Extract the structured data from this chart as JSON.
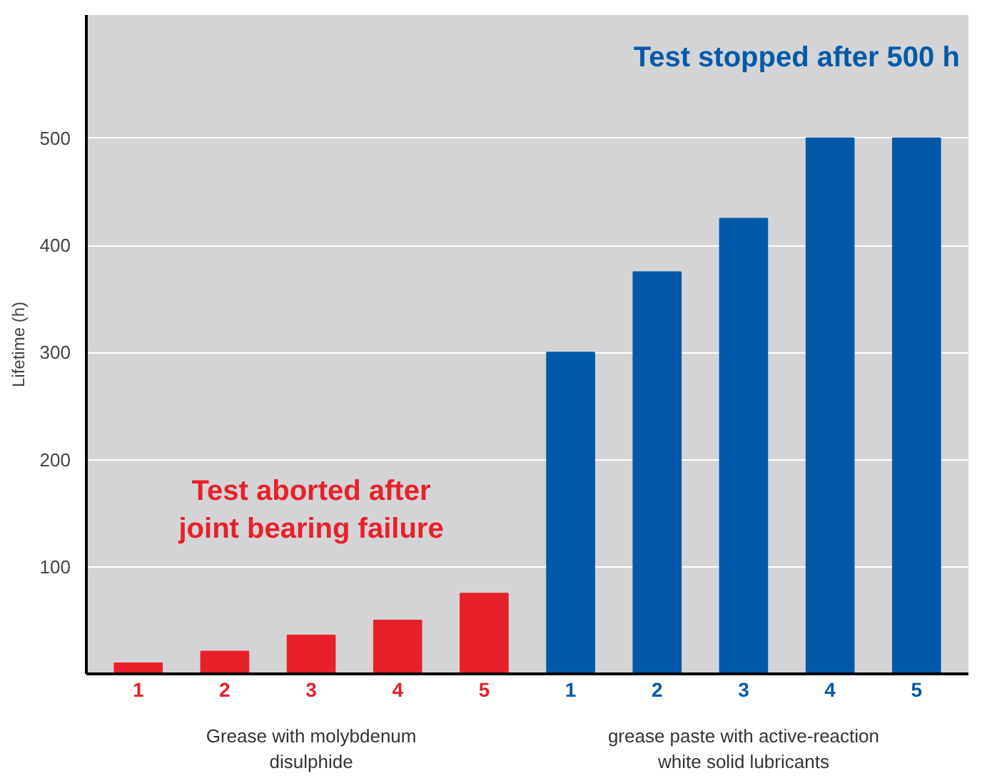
{
  "chart_data": {
    "type": "bar",
    "ylabel": "Lifetime (h)",
    "categories": [
      "1",
      "2",
      "3",
      "4",
      "5",
      "1",
      "2",
      "3",
      "4",
      "5"
    ],
    "values": [
      10,
      21,
      36,
      50,
      75,
      300,
      375,
      425,
      500,
      500
    ],
    "colors": [
      "#e8202a",
      "#e8202a",
      "#e8202a",
      "#e8202a",
      "#e8202a",
      "#005aa9",
      "#005aa9",
      "#005aa9",
      "#005aa9",
      "#005aa9"
    ],
    "ylim": [
      0,
      615
    ],
    "yticks": [
      100,
      200,
      300,
      400,
      500
    ],
    "grid": "y",
    "annotations": [
      "Test aborted after\njoint bearing failure",
      "Test stopped after 500 h",
      "Grease with molybdenum\ndisulphide",
      "grease paste with active-reaction\nwhite solid lubricants"
    ]
  }
}
